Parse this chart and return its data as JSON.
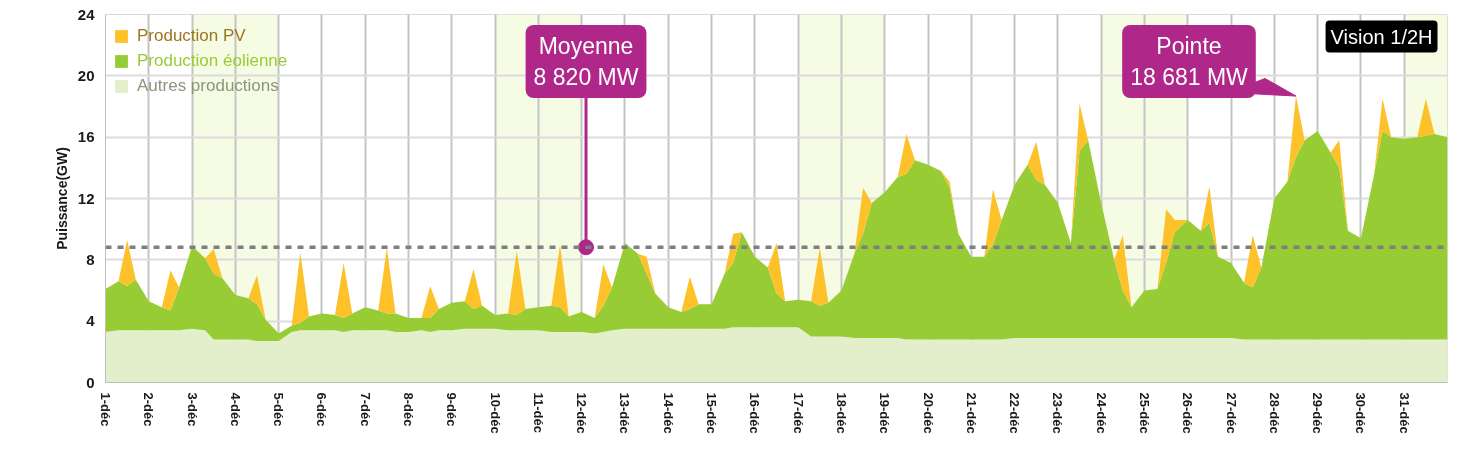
{
  "chart_data": {
    "type": "area",
    "stacked": true,
    "ylabel": "Puissance(GW)",
    "x": [
      1,
      1.3,
      1.5,
      1.7,
      2,
      2.3,
      2.5,
      2.7,
      3,
      3.3,
      3.5,
      3.7,
      4,
      4.3,
      4.5,
      4.7,
      5,
      5.3,
      5.5,
      5.7,
      6,
      6.3,
      6.5,
      6.7,
      7,
      7.3,
      7.5,
      7.7,
      8,
      8.3,
      8.5,
      8.7,
      9,
      9.3,
      9.5,
      9.7,
      10,
      10.3,
      10.5,
      10.7,
      11,
      11.3,
      11.5,
      11.7,
      12,
      12.3,
      12.5,
      12.7,
      13,
      13.3,
      13.5,
      13.7,
      14,
      14.3,
      14.5,
      14.7,
      15,
      15.3,
      15.5,
      15.7,
      16,
      16.3,
      16.5,
      16.7,
      17,
      17.3,
      17.5,
      17.7,
      18,
      18.3,
      18.5,
      18.7,
      19,
      19.3,
      19.5,
      19.7,
      20,
      20.3,
      20.5,
      20.7,
      21,
      21.3,
      21.5,
      21.7,
      22,
      22.3,
      22.5,
      22.7,
      23,
      23.3,
      23.5,
      23.7,
      24,
      24.3,
      24.5,
      24.7,
      25,
      25.3,
      25.5,
      25.7,
      26,
      26.3,
      26.5,
      26.7,
      27,
      27.3,
      27.5,
      27.7,
      28,
      28.3,
      28.5,
      28.7,
      29,
      29.3,
      29.5,
      29.7,
      30,
      30.3,
      30.5,
      30.7,
      31,
      31.3,
      31.5,
      31.7,
      32
    ],
    "series": [
      {
        "name": "Autres productions",
        "color": "#e2efca",
        "values": [
          3.3,
          3.4,
          3.4,
          3.4,
          3.4,
          3.4,
          3.4,
          3.4,
          3.5,
          3.4,
          2.8,
          2.8,
          2.8,
          2.8,
          2.7,
          2.7,
          2.7,
          3.3,
          3.4,
          3.4,
          3.4,
          3.4,
          3.3,
          3.4,
          3.4,
          3.4,
          3.4,
          3.3,
          3.3,
          3.4,
          3.3,
          3.4,
          3.4,
          3.5,
          3.5,
          3.5,
          3.5,
          3.4,
          3.4,
          3.4,
          3.4,
          3.3,
          3.3,
          3.3,
          3.3,
          3.2,
          3.3,
          3.4,
          3.5,
          3.5,
          3.5,
          3.5,
          3.5,
          3.5,
          3.5,
          3.5,
          3.5,
          3.5,
          3.6,
          3.6,
          3.6,
          3.6,
          3.6,
          3.6,
          3.6,
          3.0,
          3.0,
          3.0,
          3.0,
          2.9,
          2.9,
          2.9,
          2.9,
          2.9,
          2.8,
          2.8,
          2.8,
          2.8,
          2.8,
          2.8,
          2.8,
          2.8,
          2.8,
          2.8,
          2.9,
          2.9,
          2.9,
          2.9,
          2.9,
          2.9,
          2.9,
          2.9,
          2.9,
          2.9,
          2.9,
          2.9,
          2.9,
          2.9,
          2.9,
          2.9,
          2.9,
          2.9,
          2.9,
          2.9,
          2.9,
          2.8,
          2.8,
          2.8,
          2.8,
          2.8,
          2.8,
          2.8,
          2.8,
          2.8,
          2.8,
          2.8,
          2.8,
          2.8,
          2.8,
          2.8,
          2.8,
          2.8,
          2.8,
          2.8,
          2.8
        ]
      },
      {
        "name": "Production éolienne",
        "color": "#97cc34",
        "values": [
          2.8,
          3.2,
          2.9,
          3.3,
          1.9,
          1.5,
          1.3,
          2.8,
          5.4,
          4.7,
          4.3,
          4.0,
          2.9,
          2.7,
          2.4,
          1.4,
          0.5,
          0.4,
          0.5,
          0.9,
          1.1,
          1.0,
          0.9,
          1.1,
          1.5,
          1.3,
          1.1,
          1.2,
          0.9,
          0.8,
          0.9,
          1.4,
          1.8,
          1.8,
          1.3,
          1.5,
          0.9,
          1.1,
          1.0,
          1.4,
          1.5,
          1.7,
          1.6,
          1.0,
          1.3,
          1.0,
          1.7,
          2.8,
          5.6,
          4.9,
          3.6,
          2.3,
          1.4,
          1.1,
          1.3,
          1.6,
          1.6,
          3.6,
          4.2,
          6.2,
          4.6,
          3.9,
          2.2,
          1.7,
          1.8,
          2.3,
          2.0,
          2.2,
          3.0,
          5.5,
          6.8,
          8.8,
          9.5,
          10.5,
          10.8,
          11.7,
          11.4,
          11.0,
          9.9,
          6.9,
          5.4,
          5.4,
          6.2,
          7.8,
          10.0,
          11.3,
          10.3,
          10.0,
          8.8,
          6.2,
          12.2,
          12.9,
          8.8,
          5.1,
          3.1,
          2.0,
          3.1,
          3.2,
          4.9,
          6.9,
          7.7,
          7.0,
          7.5,
          5.3,
          4.9,
          3.7,
          3.4,
          4.7,
          9.2,
          10.3,
          11.9,
          13.0,
          13.6,
          12.2,
          11.2,
          7.1,
          6.6,
          10.7,
          13.6,
          13.2,
          13.1,
          13.2,
          13.3,
          13.4,
          13.2
        ]
      },
      {
        "name": "Production PV",
        "color": "#fdc12a",
        "values": [
          0,
          0,
          3.0,
          0,
          0,
          0,
          2.6,
          0,
          0,
          0,
          1.6,
          0,
          0,
          0,
          1.9,
          0,
          0,
          0,
          4.6,
          0,
          0,
          0,
          3.6,
          0,
          0,
          0,
          4.3,
          0,
          0,
          0,
          2.1,
          0,
          0,
          0,
          2.6,
          0,
          0,
          0,
          4.2,
          0,
          0,
          0,
          4.1,
          0,
          0,
          0,
          2.7,
          0,
          0,
          0,
          1.1,
          0,
          0,
          0,
          2.1,
          0,
          0,
          0,
          1.9,
          0,
          0,
          0,
          3.3,
          0,
          0,
          0,
          3.8,
          0,
          0,
          0,
          3.0,
          0,
          0,
          0,
          2.6,
          0,
          0,
          0,
          0.4,
          0,
          0,
          0,
          3.6,
          0,
          0,
          0,
          2.5,
          0,
          0,
          0,
          3.1,
          0,
          0,
          0,
          3.6,
          0,
          0,
          0,
          3.5,
          0.8,
          0,
          0,
          2.4,
          0,
          0,
          0,
          3.4,
          0,
          0,
          0,
          4.0,
          0,
          0,
          0,
          1.8,
          0,
          0,
          0,
          2.1,
          0,
          0,
          0,
          2.4,
          0,
          0
        ]
      }
    ],
    "xlim": [
      1,
      32
    ],
    "xticks": [
      {
        "value": 1,
        "label": "1-déc"
      },
      {
        "value": 2,
        "label": "2-déc"
      },
      {
        "value": 3,
        "label": "3-déc"
      },
      {
        "value": 4,
        "label": "4-déc"
      },
      {
        "value": 5,
        "label": "5-déc"
      },
      {
        "value": 6,
        "label": "6-déc"
      },
      {
        "value": 7,
        "label": "7-déc"
      },
      {
        "value": 8,
        "label": "8-déc"
      },
      {
        "value": 9,
        "label": "9-déc"
      },
      {
        "value": 10,
        "label": "10-déc"
      },
      {
        "value": 11,
        "label": "11-déc"
      },
      {
        "value": 12,
        "label": "12-déc"
      },
      {
        "value": 13,
        "label": "13-déc"
      },
      {
        "value": 14,
        "label": "14-déc"
      },
      {
        "value": 15,
        "label": "15-déc"
      },
      {
        "value": 16,
        "label": "16-déc"
      },
      {
        "value": 17,
        "label": "17-déc"
      },
      {
        "value": 18,
        "label": "18-déc"
      },
      {
        "value": 19,
        "label": "19-déc"
      },
      {
        "value": 20,
        "label": "20-déc"
      },
      {
        "value": 21,
        "label": "21-déc"
      },
      {
        "value": 22,
        "label": "22-déc"
      },
      {
        "value": 23,
        "label": "23-déc"
      },
      {
        "value": 24,
        "label": "24-déc"
      },
      {
        "value": 25,
        "label": "25-déc"
      },
      {
        "value": 26,
        "label": "26-déc"
      },
      {
        "value": 27,
        "label": "27-déc"
      },
      {
        "value": 28,
        "label": "28-déc"
      },
      {
        "value": 29,
        "label": "29-déc"
      },
      {
        "value": 30,
        "label": "30-déc"
      },
      {
        "value": 31,
        "label": "31-déc"
      }
    ],
    "ylim": [
      0,
      24
    ],
    "yticks": [
      0,
      4,
      8,
      12,
      16,
      20,
      24
    ],
    "grid": true,
    "legend": "top left",
    "ref_lines": [
      {
        "axis": "y",
        "value": 8.82,
        "color": "#7f7f7f",
        "line_style": "dashed"
      }
    ],
    "bands": [
      {
        "axis": "x",
        "from": 3,
        "to": 5,
        "color": "#f6fbe4"
      },
      {
        "axis": "x",
        "from": 10,
        "to": 12,
        "color": "#f6fbe4"
      },
      {
        "axis": "x",
        "from": 17,
        "to": 19,
        "color": "#f6fbe4"
      },
      {
        "axis": "x",
        "from": 24,
        "to": 26,
        "color": "#f6fbe4"
      },
      {
        "axis": "x",
        "from": 31,
        "to": 32,
        "color": "#f6fbe4"
      }
    ],
    "annotations": [
      {
        "text": "Moyenne\n8 820 MW",
        "x": 12.1,
        "y": 8.82
      },
      {
        "text": "Pointe\n18 681 MW",
        "x": 28.5,
        "y": 18.681
      },
      "Vision 1/2H"
    ]
  }
}
